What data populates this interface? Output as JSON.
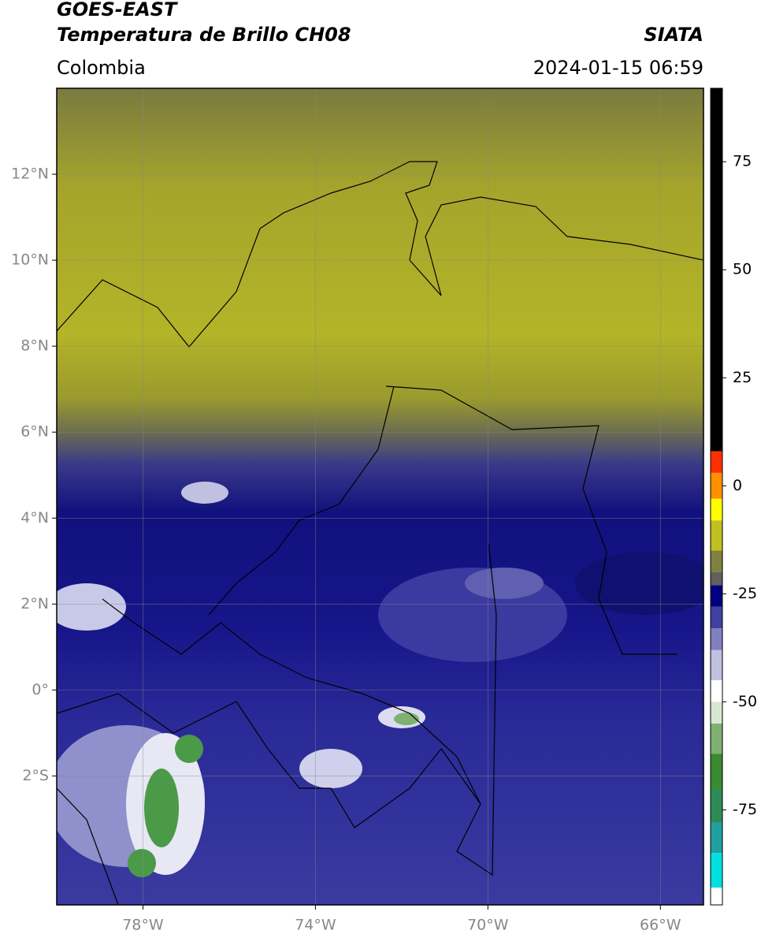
{
  "header": {
    "title_line1": "GOES-EAST",
    "title_line2": "Temperatura de Brillo CH08",
    "source": "SIATA",
    "region": "Colombia",
    "datetime": "2024-01-15 06:59"
  },
  "map": {
    "xlim": [
      -80,
      -65
    ],
    "ylim": [
      -5,
      14
    ],
    "grid": true,
    "xticks": [
      {
        "value": -78,
        "label": "78°W"
      },
      {
        "value": -74,
        "label": "74°W"
      },
      {
        "value": -70,
        "label": "70°W"
      },
      {
        "value": -66,
        "label": "66°W"
      }
    ],
    "yticks": [
      {
        "value": 12,
        "label": "12°N"
      },
      {
        "value": 10,
        "label": "10°N"
      },
      {
        "value": 8,
        "label": "8°N"
      },
      {
        "value": 6,
        "label": "6°N"
      },
      {
        "value": 4,
        "label": "4°N"
      },
      {
        "value": 2,
        "label": "2°N"
      },
      {
        "value": 0,
        "label": "0°"
      },
      {
        "value": -2,
        "label": "2°S"
      }
    ]
  },
  "colorbar": {
    "lim": [
      -97,
      92
    ],
    "ticks": [
      75,
      50,
      25,
      0,
      -25,
      -50,
      -75
    ],
    "stops": [
      {
        "value": -97,
        "color": "#ffffff"
      },
      {
        "value": -93,
        "color": "#00e0e0"
      },
      {
        "value": -85,
        "color": "#20a0a0"
      },
      {
        "value": -78,
        "color": "#2e8b57"
      },
      {
        "value": -70,
        "color": "#3a8a30"
      },
      {
        "value": -62,
        "color": "#7fb070"
      },
      {
        "value": -55,
        "color": "#d8e8d0"
      },
      {
        "value": -50,
        "color": "#ffffff"
      },
      {
        "value": -45,
        "color": "#c0c0e0"
      },
      {
        "value": -38,
        "color": "#8080c0"
      },
      {
        "value": -33,
        "color": "#4040a0"
      },
      {
        "value": -28,
        "color": "#000080"
      },
      {
        "value": -23,
        "color": "#606060"
      },
      {
        "value": -20,
        "color": "#808040"
      },
      {
        "value": -15,
        "color": "#c0c020"
      },
      {
        "value": -8,
        "color": "#ffff00"
      },
      {
        "value": -3,
        "color": "#ff9000"
      },
      {
        "value": 3,
        "color": "#ff3000"
      },
      {
        "value": 8,
        "color": "#000000"
      }
    ]
  }
}
